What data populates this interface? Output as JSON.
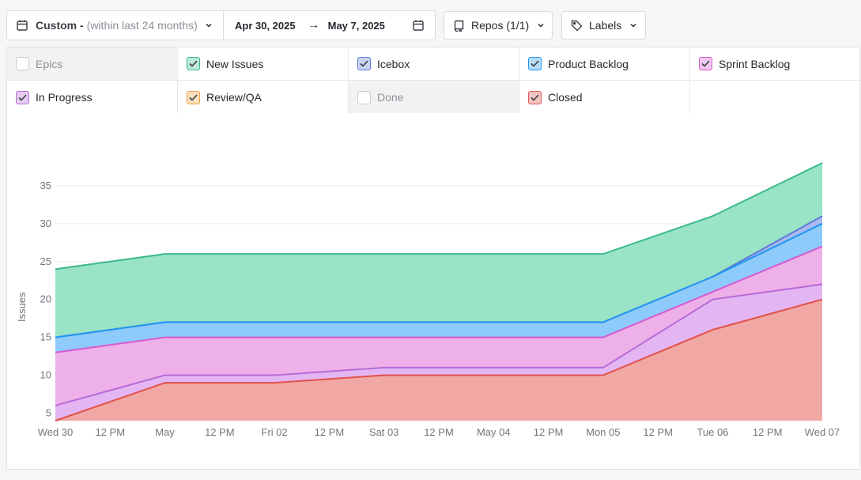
{
  "toolbar": {
    "range_label": "Custom -",
    "range_hint": "(within last 24 months)",
    "start_date": "Apr 30, 2025",
    "arrow": "→",
    "end_date": "May 7, 2025",
    "repos_label": "Repos (1/1)",
    "labels_label": "Labels"
  },
  "filters": [
    {
      "label": "Epics",
      "checked": false,
      "color": "#9aa0a6"
    },
    {
      "label": "New Issues",
      "checked": true,
      "color": "#3cb98a"
    },
    {
      "label": "Icebox",
      "checked": true,
      "color": "#5b7bd6"
    },
    {
      "label": "Product Backlog",
      "checked": true,
      "color": "#2196f3"
    },
    {
      "label": "Sprint Backlog",
      "checked": true,
      "color": "#d45bd0"
    },
    {
      "label": "In Progress",
      "checked": true,
      "color": "#b86ad8"
    },
    {
      "label": "Review/QA",
      "checked": true,
      "color": "#f0a040"
    },
    {
      "label": "Done",
      "checked": false,
      "color": "#9aa0a6"
    },
    {
      "label": "Closed",
      "checked": true,
      "color": "#e05252"
    }
  ],
  "chart_data": {
    "type": "area",
    "ylabel": "Issues",
    "xlabel": "",
    "x_ticks": [
      "Wed 30",
      "12 PM",
      "May",
      "12 PM",
      "Fri 02",
      "12 PM",
      "Sat 03",
      "12 PM",
      "May 04",
      "12 PM",
      "Mon 05",
      "12 PM",
      "Tue 06",
      "12 PM",
      "Wed 07"
    ],
    "y_ticks": [
      5,
      10,
      15,
      20,
      25,
      30,
      35
    ],
    "ylim": [
      4,
      40
    ],
    "x": [
      "2025-04-30",
      "2025-05-01",
      "2025-05-02",
      "2025-05-03",
      "2025-05-04",
      "2025-05-05",
      "2025-05-06",
      "2025-05-07"
    ],
    "stacked": true,
    "cumulative_series": [
      {
        "name": "New Issues",
        "color": "#3cb98a",
        "fill": "#99e3c6",
        "values": [
          24,
          26,
          26,
          26,
          26,
          26,
          31,
          38
        ]
      },
      {
        "name": "Icebox",
        "color": "#5b7bd6",
        "fill": "#a9b9ee",
        "values": [
          15,
          17,
          17,
          17,
          17,
          17,
          23,
          31
        ]
      },
      {
        "name": "Product Backlog",
        "color": "#2196f3",
        "fill": "#8ecbfa",
        "values": [
          15,
          17,
          17,
          17,
          17,
          17,
          23,
          30
        ]
      },
      {
        "name": "Sprint Backlog",
        "color": "#d45bd0",
        "fill": "#edb0e8",
        "values": [
          13,
          15,
          15,
          15,
          15,
          15,
          21,
          27
        ]
      },
      {
        "name": "In Progress",
        "color": "#b86ad8",
        "fill": "#e3b6f3",
        "values": [
          6,
          10,
          10,
          11,
          11,
          11,
          20,
          22
        ]
      },
      {
        "name": "Review/QA",
        "color": "#f0a040",
        "fill": "#f7cf9f",
        "values": [
          4,
          9,
          9,
          10,
          10,
          10,
          16,
          20
        ]
      },
      {
        "name": "Closed",
        "color": "#e05252",
        "fill": "#f1a8a5",
        "values": [
          4,
          9,
          9,
          10,
          10,
          10,
          16,
          20
        ]
      }
    ],
    "grid": true,
    "legend": "none"
  }
}
